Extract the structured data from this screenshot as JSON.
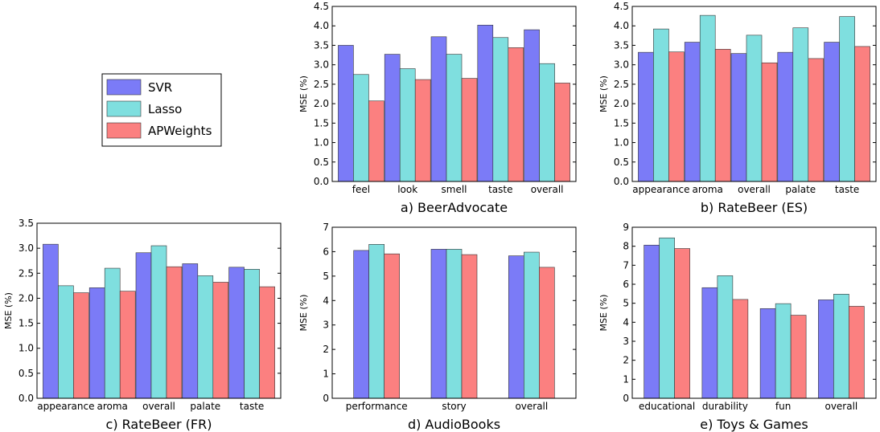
{
  "colors": {
    "SVR": "#7b7bf7",
    "Lasso": "#7fdfdf",
    "APWeights": "#fb8080"
  },
  "legend": {
    "placement": "upper-left",
    "entries": [
      "SVR",
      "Lasso",
      "APWeights"
    ]
  },
  "chart_data": [
    {
      "type": "bar",
      "caption": "a) BeerAdvocate",
      "ylabel": "MSE (%)",
      "ylim": [
        0,
        4.5
      ],
      "yticks": [
        "0.0",
        "0.5",
        "1.0",
        "1.5",
        "2.0",
        "2.5",
        "3.0",
        "3.5",
        "4.0",
        "4.5"
      ],
      "categories": [
        "feel",
        "look",
        "smell",
        "taste",
        "overall"
      ],
      "series": [
        {
          "name": "SVR",
          "values": [
            3.5,
            3.27,
            3.72,
            4.02,
            3.9
          ]
        },
        {
          "name": "Lasso",
          "values": [
            2.75,
            2.9,
            3.27,
            3.7,
            3.03
          ]
        },
        {
          "name": "APWeights",
          "values": [
            2.07,
            2.62,
            2.65,
            3.44,
            2.53
          ]
        }
      ]
    },
    {
      "type": "bar",
      "caption": "b) RateBeer (ES)",
      "ylabel": "MSE (%)",
      "ylim": [
        0,
        4.5
      ],
      "yticks": [
        "0.0",
        "0.5",
        "1.0",
        "1.5",
        "2.0",
        "2.5",
        "3.0",
        "3.5",
        "4.0",
        "4.5"
      ],
      "categories": [
        "appearance",
        "aroma",
        "overall",
        "palate",
        "taste"
      ],
      "series": [
        {
          "name": "SVR",
          "values": [
            3.32,
            3.58,
            3.29,
            3.32,
            3.58
          ]
        },
        {
          "name": "Lasso",
          "values": [
            3.92,
            4.27,
            3.76,
            3.95,
            4.24
          ]
        },
        {
          "name": "APWeights",
          "values": [
            3.33,
            3.4,
            3.05,
            3.16,
            3.47
          ]
        }
      ]
    },
    {
      "type": "bar",
      "caption": "c) RateBeer (FR)",
      "ylabel": "MSE (%)",
      "ylim": [
        0,
        3.5
      ],
      "yticks": [
        "0.0",
        "0.5",
        "1.0",
        "1.5",
        "2.0",
        "2.5",
        "3.0",
        "3.5"
      ],
      "categories": [
        "appearance",
        "aroma",
        "overall",
        "palate",
        "taste"
      ],
      "series": [
        {
          "name": "SVR",
          "values": [
            3.08,
            2.21,
            2.91,
            2.69,
            2.62
          ]
        },
        {
          "name": "Lasso",
          "values": [
            2.25,
            2.6,
            3.05,
            2.45,
            2.58
          ]
        },
        {
          "name": "APWeights",
          "values": [
            2.11,
            2.14,
            2.63,
            2.32,
            2.23
          ]
        }
      ]
    },
    {
      "type": "bar",
      "caption": "d) AudioBooks",
      "ylabel": "MSE (%)",
      "ylim": [
        0,
        7
      ],
      "yticks": [
        "0",
        "1",
        "2",
        "3",
        "4",
        "5",
        "6",
        "7"
      ],
      "categories": [
        "performance",
        "story",
        "overall"
      ],
      "series": [
        {
          "name": "SVR",
          "values": [
            6.05,
            6.1,
            5.83
          ]
        },
        {
          "name": "Lasso",
          "values": [
            6.3,
            6.1,
            5.98
          ]
        },
        {
          "name": "APWeights",
          "values": [
            5.91,
            5.88,
            5.36
          ]
        }
      ]
    },
    {
      "type": "bar",
      "caption": "e) Toys & Games",
      "ylabel": "MSE (%)",
      "ylim": [
        0,
        9
      ],
      "yticks": [
        "0",
        "1",
        "2",
        "3",
        "4",
        "5",
        "6",
        "7",
        "8",
        "9"
      ],
      "categories": [
        "educational",
        "durability",
        "fun",
        "overall"
      ],
      "series": [
        {
          "name": "SVR",
          "values": [
            8.06,
            5.82,
            4.72,
            5.18
          ]
        },
        {
          "name": "Lasso",
          "values": [
            8.44,
            6.45,
            4.98,
            5.48
          ]
        },
        {
          "name": "APWeights",
          "values": [
            7.88,
            5.2,
            4.37,
            4.84
          ]
        }
      ]
    }
  ]
}
